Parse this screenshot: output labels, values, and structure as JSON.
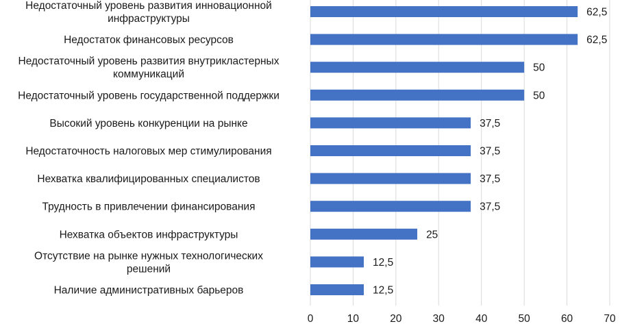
{
  "chart_data": {
    "type": "bar",
    "orientation": "horizontal",
    "categories": [
      "Недостаточный уровень развития инновационной инфраструктуры",
      "Недостаток финансовых ресурсов",
      "Недостаточный уровень развития внутрикластерных коммуникаций",
      "Недостаточный уровень государственной поддержки",
      "Высокий уровень конкуренции на рынке",
      "Недостаточность налоговых мер стимулирования",
      "Нехватка квалифицированных специалистов",
      "Трудность в привлечении финансирования",
      "Нехватка объектов инфраструктуры",
      "Отсутствие на рынке нужных технологических решений",
      "Наличие административных барьеров"
    ],
    "category_lines": [
      [
        "Недостаточный уровень развития инновационной",
        "инфраструктуры"
      ],
      [
        "Недостаток финансовых ресурсов"
      ],
      [
        "Недостаточный уровень развития внутрикластерных",
        "коммуникаций"
      ],
      [
        "Недостаточный уровень государственной поддержки"
      ],
      [
        "Высокий уровень конкуренции на рынке"
      ],
      [
        "Недостаточность налоговых мер стимулирования"
      ],
      [
        "Нехватка квалифицированных специалистов"
      ],
      [
        "Трудность в привлечении финансирования"
      ],
      [
        "Нехватка объектов инфраструктуры"
      ],
      [
        "Отсутствие на рынке нужных технологических",
        "решений"
      ],
      [
        "Наличие административных барьеров"
      ]
    ],
    "values": [
      62.5,
      62.5,
      50,
      50,
      37.5,
      37.5,
      37.5,
      37.5,
      25,
      12.5,
      12.5
    ],
    "value_labels": [
      "62,5",
      "62,5",
      "50",
      "50",
      "37,5",
      "37,5",
      "37,5",
      "37,5",
      "25",
      "12,5",
      "12,5"
    ],
    "xticks": [
      0,
      10,
      20,
      30,
      40,
      50,
      60,
      70
    ],
    "xlim": [
      0,
      70
    ],
    "bar_color": "#4472C4",
    "grid": true,
    "grid_color": "#d9d9d9",
    "legend": false
  }
}
